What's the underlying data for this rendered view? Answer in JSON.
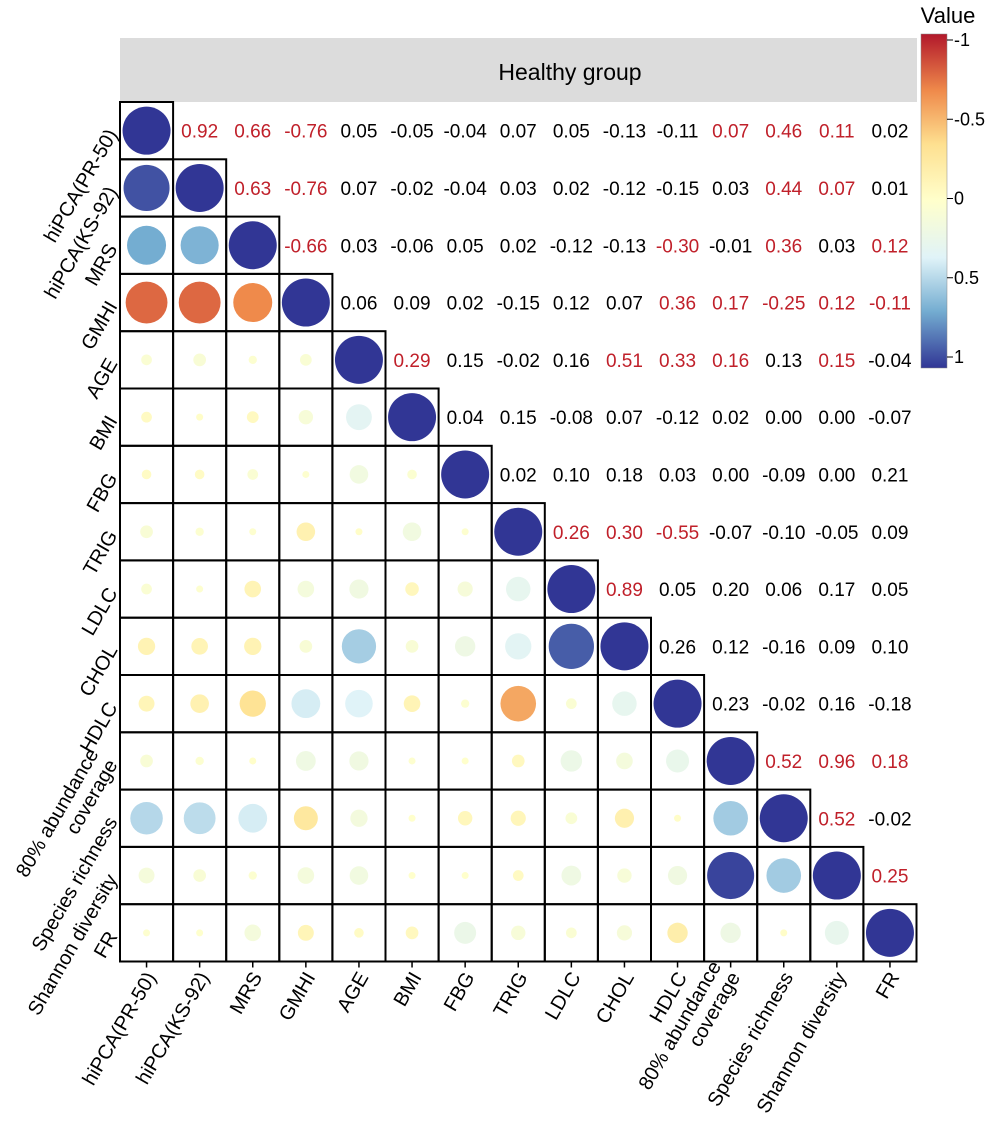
{
  "chart_data": {
    "type": "correlation-matrix",
    "title": "Healthy group",
    "legend": {
      "title": "Value",
      "ticks": [
        "-1",
        "-0.5",
        "0",
        "0.5",
        "1"
      ],
      "placement": "top-right"
    },
    "colors": {
      "highlight_text": "#c0202a",
      "normal_text": "#000000",
      "strip": "#dcdcdc",
      "scale": [
        "#b2182b",
        "#ef8a4b",
        "#fee090",
        "#ffffcc",
        "#e0f3f8",
        "#74add1",
        "#313695"
      ]
    },
    "variables": [
      "hiPCA(PR-50)",
      "hiPCA(KS-92)",
      "MRS",
      "GMHI",
      "AGE",
      "BMI",
      "FBG",
      "TRIG",
      "LDLC",
      "CHOL",
      "HDLC",
      "80% abundance coverage",
      "Species richness",
      "Shannon diversity",
      "FR"
    ],
    "y_labels": [
      [
        "hiPCA(PR-50)"
      ],
      [
        "hiPCA(KS-92)"
      ],
      [
        "MRS"
      ],
      [
        "GMHI"
      ],
      [
        "AGE"
      ],
      [
        "BMI"
      ],
      [
        "FBG"
      ],
      [
        "TRIG"
      ],
      [
        "LDLC"
      ],
      [
        "CHOL"
      ],
      [
        "HDLC"
      ],
      [
        "80% abundance",
        "coverage"
      ],
      [
        "Species richness"
      ],
      [
        "Shannon diversity"
      ],
      [
        "FR"
      ]
    ],
    "x_labels": [
      [
        "hiPCA(PR-50)"
      ],
      [
        "hiPCA(KS-92)"
      ],
      [
        "MRS"
      ],
      [
        "GMHI"
      ],
      [
        "AGE"
      ],
      [
        "BMI"
      ],
      [
        "FBG"
      ],
      [
        "TRIG"
      ],
      [
        "LDLC"
      ],
      [
        "CHOL"
      ],
      [
        "HDLC"
      ],
      [
        "80% abundance",
        "coverage"
      ],
      [
        "Species richness"
      ],
      [
        "Shannon diversity"
      ],
      [
        "FR"
      ]
    ],
    "upper_text": [
      [
        "0.92",
        "0.66",
        "-0.76",
        "0.05",
        "-0.05",
        "-0.04",
        "0.07",
        "0.05",
        "-0.13",
        "-0.11",
        "0.07",
        "0.46",
        "0.11",
        "0.02"
      ],
      [
        "0.63",
        "-0.76",
        "0.07",
        "-0.02",
        "-0.04",
        "0.03",
        "0.02",
        "-0.12",
        "-0.15",
        "0.03",
        "0.44",
        "0.07",
        "0.01"
      ],
      [
        "-0.66",
        "0.03",
        "-0.06",
        "0.05",
        "0.02",
        "-0.12",
        "-0.13",
        "-0.30",
        "-0.01",
        "0.36",
        "0.03",
        "0.12"
      ],
      [
        "0.06",
        "0.09",
        "0.02",
        "-0.15",
        "0.12",
        "0.07",
        "0.36",
        "0.17",
        "-0.25",
        "0.12",
        "-0.11"
      ],
      [
        "0.29",
        "0.15",
        "-0.02",
        "0.16",
        "0.51",
        "0.33",
        "0.16",
        "0.13",
        "0.15",
        "-0.04"
      ],
      [
        "0.04",
        "0.15",
        "-0.08",
        "0.07",
        "-0.12",
        "0.02",
        "0.00",
        "0.00",
        "-0.07"
      ],
      [
        "0.02",
        "0.10",
        "0.18",
        "0.03",
        "0.00",
        "-0.09",
        "0.00",
        "0.21"
      ],
      [
        "0.26",
        "0.30",
        "-0.55",
        "-0.07",
        "-0.10",
        "-0.05",
        "0.09"
      ],
      [
        "0.89",
        "0.05",
        "0.20",
        "0.06",
        "0.17",
        "0.05"
      ],
      [
        "0.26",
        "0.12",
        "-0.16",
        "0.09",
        "0.10"
      ],
      [
        "0.23",
        "-0.02",
        "0.16",
        "-0.18"
      ],
      [
        "0.52",
        "0.96",
        "0.18"
      ],
      [
        "0.52",
        "-0.02"
      ],
      [
        "0.25"
      ],
      []
    ],
    "highlighted": [
      [
        true,
        true,
        true,
        false,
        false,
        false,
        false,
        false,
        false,
        false,
        true,
        true,
        true,
        false
      ],
      [
        true,
        true,
        false,
        false,
        false,
        false,
        false,
        false,
        false,
        false,
        true,
        true,
        false
      ],
      [
        true,
        false,
        false,
        false,
        false,
        false,
        false,
        true,
        false,
        true,
        false,
        true
      ],
      [
        false,
        false,
        false,
        false,
        false,
        false,
        true,
        true,
        true,
        true,
        true
      ],
      [
        true,
        false,
        false,
        false,
        true,
        true,
        true,
        false,
        true,
        false
      ],
      [
        false,
        false,
        false,
        false,
        false,
        false,
        false,
        false,
        false
      ],
      [
        false,
        false,
        false,
        false,
        false,
        false,
        false,
        false
      ],
      [
        true,
        true,
        true,
        false,
        false,
        false,
        false
      ],
      [
        true,
        false,
        false,
        false,
        false,
        false
      ],
      [
        false,
        false,
        false,
        false,
        false
      ],
      [
        false,
        false,
        false,
        false
      ],
      [
        true,
        true,
        true
      ],
      [
        true,
        false
      ],
      [
        true
      ],
      []
    ]
  }
}
